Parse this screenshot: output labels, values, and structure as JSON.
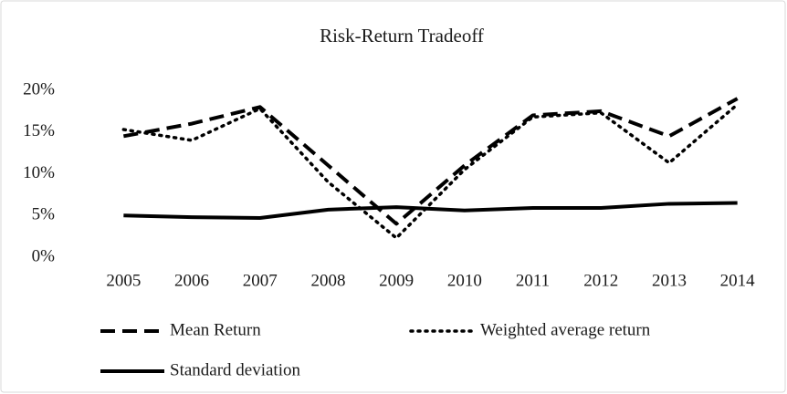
{
  "chart_data": {
    "type": "line",
    "title": "Risk-Return Tradeoff",
    "categories": [
      "2005",
      "2006",
      "2007",
      "2008",
      "2009",
      "2010",
      "2011",
      "2012",
      "2013",
      "2014"
    ],
    "series": [
      {
        "name": "Mean Return",
        "color": "#000000",
        "style": "dashed",
        "values": [
          14.5,
          16,
          18,
          11,
          4,
          11,
          17,
          17.5,
          14.5,
          19
        ]
      },
      {
        "name": "Weighted average return",
        "color": "#000000",
        "style": "dotted",
        "values": [
          15.3,
          14,
          17.8,
          9,
          2.3,
          10.5,
          16.8,
          17.3,
          11.3,
          18.3
        ]
      },
      {
        "name": "Standard deviation",
        "color": "#000000",
        "style": "solid",
        "values": [
          5.0,
          4.8,
          4.7,
          5.7,
          6.0,
          5.6,
          5.9,
          5.9,
          6.4,
          6.5
        ]
      }
    ],
    "ylim": [
      0,
      20
    ],
    "yticks": [
      {
        "value": 0,
        "label": "0%"
      },
      {
        "value": 5,
        "label": "5%"
      },
      {
        "value": 10,
        "label": "10%"
      },
      {
        "value": 15,
        "label": "15%"
      },
      {
        "value": 20,
        "label": "20%"
      }
    ],
    "grid": false,
    "legend": "bottom"
  }
}
